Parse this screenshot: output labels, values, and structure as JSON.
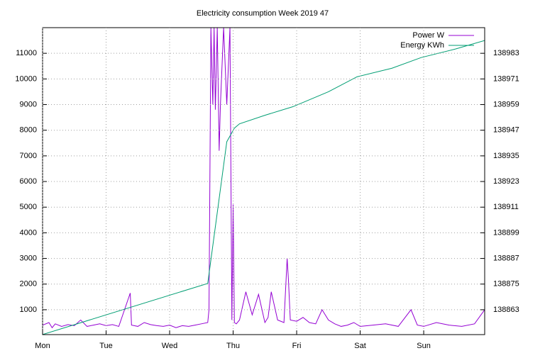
{
  "chart_data": {
    "type": "line",
    "title": "Electricity consumption Week 2019 47",
    "xlim": [
      0,
      6.96
    ],
    "xticks": [
      {
        "value": 0,
        "label": "Mon"
      },
      {
        "value": 1,
        "label": "Tue"
      },
      {
        "value": 2,
        "label": "Wed"
      },
      {
        "value": 3,
        "label": "Thu"
      },
      {
        "value": 4,
        "label": "Fri"
      },
      {
        "value": 5,
        "label": "Sat"
      },
      {
        "value": 6,
        "label": "Sun"
      }
    ],
    "ylim": [
      30,
      12000
    ],
    "yticks": [
      1000,
      2000,
      3000,
      4000,
      5000,
      6000,
      7000,
      8000,
      9000,
      10000,
      11000
    ],
    "y2lim": [
      138851.36,
      138995
    ],
    "y2ticks": [
      138863,
      138875,
      138887,
      138899,
      138911,
      138923,
      138935,
      138947,
      138959,
      138971,
      138983
    ],
    "grid": true,
    "legend": "top-right",
    "series": [
      {
        "name": "Power W",
        "color": "#9400d3",
        "x": [
          0,
          0.1,
          0.15,
          0.2,
          0.3,
          0.4,
          0.5,
          0.6,
          0.7,
          0.8,
          0.9,
          1.0,
          1.1,
          1.2,
          1.38,
          1.4,
          1.5,
          1.6,
          1.7,
          1.8,
          1.9,
          2.0,
          2.1,
          2.2,
          2.3,
          2.4,
          2.5,
          2.6,
          2.62,
          2.65,
          2.68,
          2.7,
          2.72,
          2.75,
          2.78,
          2.8,
          2.85,
          2.9,
          2.95,
          2.98,
          3.0,
          3.02,
          3.05,
          3.1,
          3.2,
          3.3,
          3.4,
          3.5,
          3.55,
          3.6,
          3.7,
          3.8,
          3.85,
          3.87,
          3.9,
          4.0,
          4.1,
          4.2,
          4.3,
          4.4,
          4.5,
          4.6,
          4.7,
          4.8,
          4.9,
          5.0,
          5.2,
          5.4,
          5.6,
          5.8,
          5.9,
          6.0,
          6.2,
          6.4,
          6.6,
          6.8,
          6.96
        ],
        "values": [
          400,
          500,
          300,
          450,
          350,
          420,
          380,
          600,
          350,
          400,
          450,
          380,
          420,
          350,
          1650,
          400,
          350,
          500,
          420,
          380,
          350,
          400,
          300,
          380,
          350,
          400,
          450,
          500,
          1000,
          12000,
          9000,
          12000,
          8800,
          12000,
          7200,
          9000,
          12000,
          9000,
          12000,
          600,
          5100,
          500,
          450,
          600,
          1700,
          800,
          1600,
          500,
          700,
          1700,
          600,
          500,
          3000,
          2200,
          600,
          550,
          700,
          500,
          450,
          1000,
          600,
          450,
          350,
          400,
          500,
          350,
          400,
          450,
          350,
          1000,
          400,
          350,
          500,
          400,
          350,
          450,
          1000
        ]
      },
      {
        "name": "Energy KWh",
        "color": "#009e73",
        "axis": "y2",
        "x": [
          0,
          2.6,
          2.9,
          3.02,
          3.1,
          3.5,
          3.94,
          4.5,
          4.95,
          5.5,
          5.96,
          6.5,
          6.96
        ],
        "values": [
          138851.4,
          138875.3,
          138941.6,
          138948,
          138950,
          138954,
          138958,
          138965,
          138972,
          138976,
          138981,
          138985,
          138989
        ]
      }
    ]
  }
}
